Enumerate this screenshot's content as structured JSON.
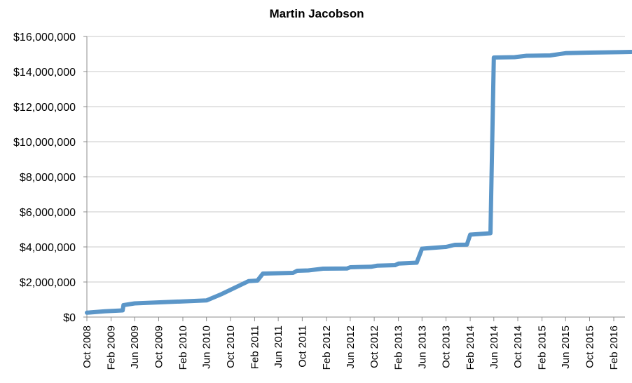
{
  "chart_data": {
    "type": "line",
    "title": "Martin Jacobson",
    "xlabel": "",
    "ylabel": "",
    "ylim": [
      0,
      16000000
    ],
    "grid": true,
    "legend": "none",
    "colors": {
      "series": "#5b96c8",
      "grid": "#c8c8c8",
      "axis": "#8c8c8c"
    },
    "y_ticks": [
      {
        "value": 0,
        "label": "$0"
      },
      {
        "value": 2000000,
        "label": "$2,000,000"
      },
      {
        "value": 4000000,
        "label": "$4,000,000"
      },
      {
        "value": 6000000,
        "label": "$6,000,000"
      },
      {
        "value": 8000000,
        "label": "$8,000,000"
      },
      {
        "value": 10000000,
        "label": "$10,000,000"
      },
      {
        "value": 12000000,
        "label": "$12,000,000"
      },
      {
        "value": 14000000,
        "label": "$14,000,000"
      },
      {
        "value": 16000000,
        "label": "$16,000,000"
      }
    ],
    "x_ticks": [
      {
        "date": "2008-10",
        "label": "Oct 2008"
      },
      {
        "date": "2009-02",
        "label": "Feb 2009"
      },
      {
        "date": "2009-06",
        "label": "Jun 2009"
      },
      {
        "date": "2009-10",
        "label": "Oct 2009"
      },
      {
        "date": "2010-02",
        "label": "Feb 2010"
      },
      {
        "date": "2010-06",
        "label": "Jun 2010"
      },
      {
        "date": "2010-10",
        "label": "Oct 2010"
      },
      {
        "date": "2011-02",
        "label": "Feb 2011"
      },
      {
        "date": "2011-06",
        "label": "Jun 2011"
      },
      {
        "date": "2011-10",
        "label": "Oct 2011"
      },
      {
        "date": "2012-02",
        "label": "Feb 2012"
      },
      {
        "date": "2012-06",
        "label": "Jun 2012"
      },
      {
        "date": "2012-10",
        "label": "Oct 2012"
      },
      {
        "date": "2013-02",
        "label": "Feb 2013"
      },
      {
        "date": "2013-06",
        "label": "Jun 2013"
      },
      {
        "date": "2013-10",
        "label": "Oct 2013"
      },
      {
        "date": "2014-02",
        "label": "Feb 2014"
      },
      {
        "date": "2014-06",
        "label": "Jun 2014"
      },
      {
        "date": "2014-10",
        "label": "Oct 2014"
      },
      {
        "date": "2015-02",
        "label": "Feb 2015"
      },
      {
        "date": "2015-06",
        "label": "Jun 2015"
      },
      {
        "date": "2015-10",
        "label": "Oct 2015"
      },
      {
        "date": "2016-02",
        "label": "Feb 2016"
      }
    ],
    "xlim": [
      "2008-10-01",
      "2016-05-01"
    ],
    "series": [
      {
        "points": [
          {
            "x": "2008-10-01",
            "y": 250000
          },
          {
            "x": "2009-01-01",
            "y": 330000
          },
          {
            "x": "2009-04-01",
            "y": 380000
          },
          {
            "x": "2009-04-05",
            "y": 680000
          },
          {
            "x": "2009-06-01",
            "y": 780000
          },
          {
            "x": "2010-06-01",
            "y": 950000
          },
          {
            "x": "2010-08-15",
            "y": 1300000
          },
          {
            "x": "2011-01-01",
            "y": 2050000
          },
          {
            "x": "2011-02-15",
            "y": 2080000
          },
          {
            "x": "2011-03-15",
            "y": 2480000
          },
          {
            "x": "2011-08-15",
            "y": 2520000
          },
          {
            "x": "2011-09-05",
            "y": 2640000
          },
          {
            "x": "2011-11-01",
            "y": 2660000
          },
          {
            "x": "2012-01-15",
            "y": 2760000
          },
          {
            "x": "2012-05-15",
            "y": 2770000
          },
          {
            "x": "2012-06-01",
            "y": 2840000
          },
          {
            "x": "2012-09-15",
            "y": 2870000
          },
          {
            "x": "2012-10-15",
            "y": 2930000
          },
          {
            "x": "2013-01-15",
            "y": 2960000
          },
          {
            "x": "2013-02-01",
            "y": 3050000
          },
          {
            "x": "2013-05-05",
            "y": 3100000
          },
          {
            "x": "2013-06-01",
            "y": 3900000
          },
          {
            "x": "2013-10-01",
            "y": 4000000
          },
          {
            "x": "2013-11-15",
            "y": 4120000
          },
          {
            "x": "2014-01-15",
            "y": 4130000
          },
          {
            "x": "2014-02-01",
            "y": 4700000
          },
          {
            "x": "2014-05-15",
            "y": 4780000
          },
          {
            "x": "2014-06-01",
            "y": 14800000
          },
          {
            "x": "2014-09-15",
            "y": 14820000
          },
          {
            "x": "2014-11-15",
            "y": 14900000
          },
          {
            "x": "2015-03-15",
            "y": 14920000
          },
          {
            "x": "2015-06-01",
            "y": 15050000
          },
          {
            "x": "2015-10-01",
            "y": 15080000
          },
          {
            "x": "2016-05-01",
            "y": 15120000
          }
        ]
      }
    ]
  }
}
